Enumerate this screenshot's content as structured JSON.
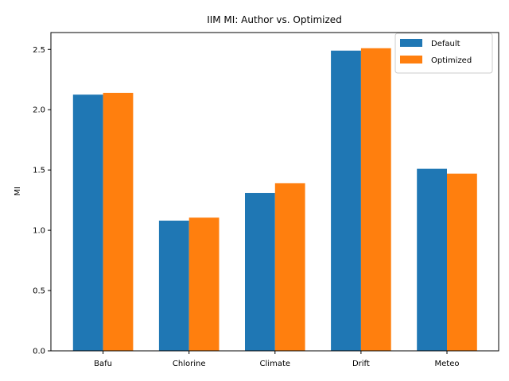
{
  "chart_data": {
    "type": "bar",
    "title": "IIM MI: Author vs. Optimized",
    "xlabel": "",
    "ylabel": "MI",
    "categories": [
      "Bafu",
      "Chlorine",
      "Climate",
      "Drift",
      "Meteo"
    ],
    "series": [
      {
        "name": "Default",
        "color": "#1f77b4",
        "values": [
          2.125,
          1.08,
          1.31,
          2.49,
          1.51
        ]
      },
      {
        "name": "Optimized",
        "color": "#ff7f0e",
        "values": [
          2.14,
          1.105,
          1.39,
          2.51,
          1.47
        ]
      }
    ],
    "ylim": [
      0,
      2.64
    ],
    "yticks": [
      "0.0",
      "0.5",
      "1.0",
      "1.5",
      "2.0",
      "2.5"
    ],
    "grid": false,
    "legend_position": "top-right"
  }
}
